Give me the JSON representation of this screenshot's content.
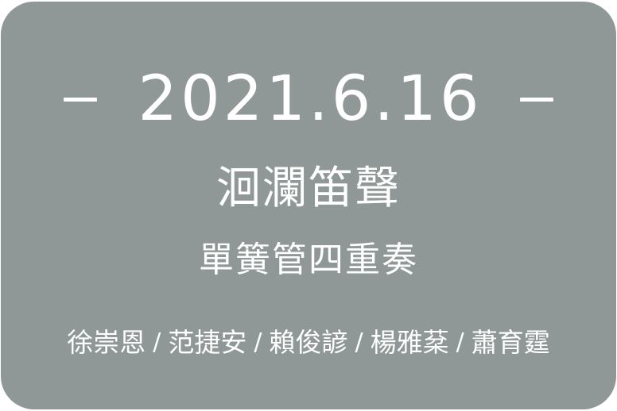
{
  "event": {
    "date": "2021.6.16",
    "title": "洄瀾笛聲",
    "subtitle": "單簧管四重奏",
    "separator": "/",
    "performers": [
      "徐崇恩",
      "范捷安",
      "賴俊諺",
      "楊雅棻",
      "蕭育霆"
    ]
  },
  "colors": {
    "card_background": "#8f9896",
    "text": "#ffffff",
    "page_background": "#ffffff"
  }
}
